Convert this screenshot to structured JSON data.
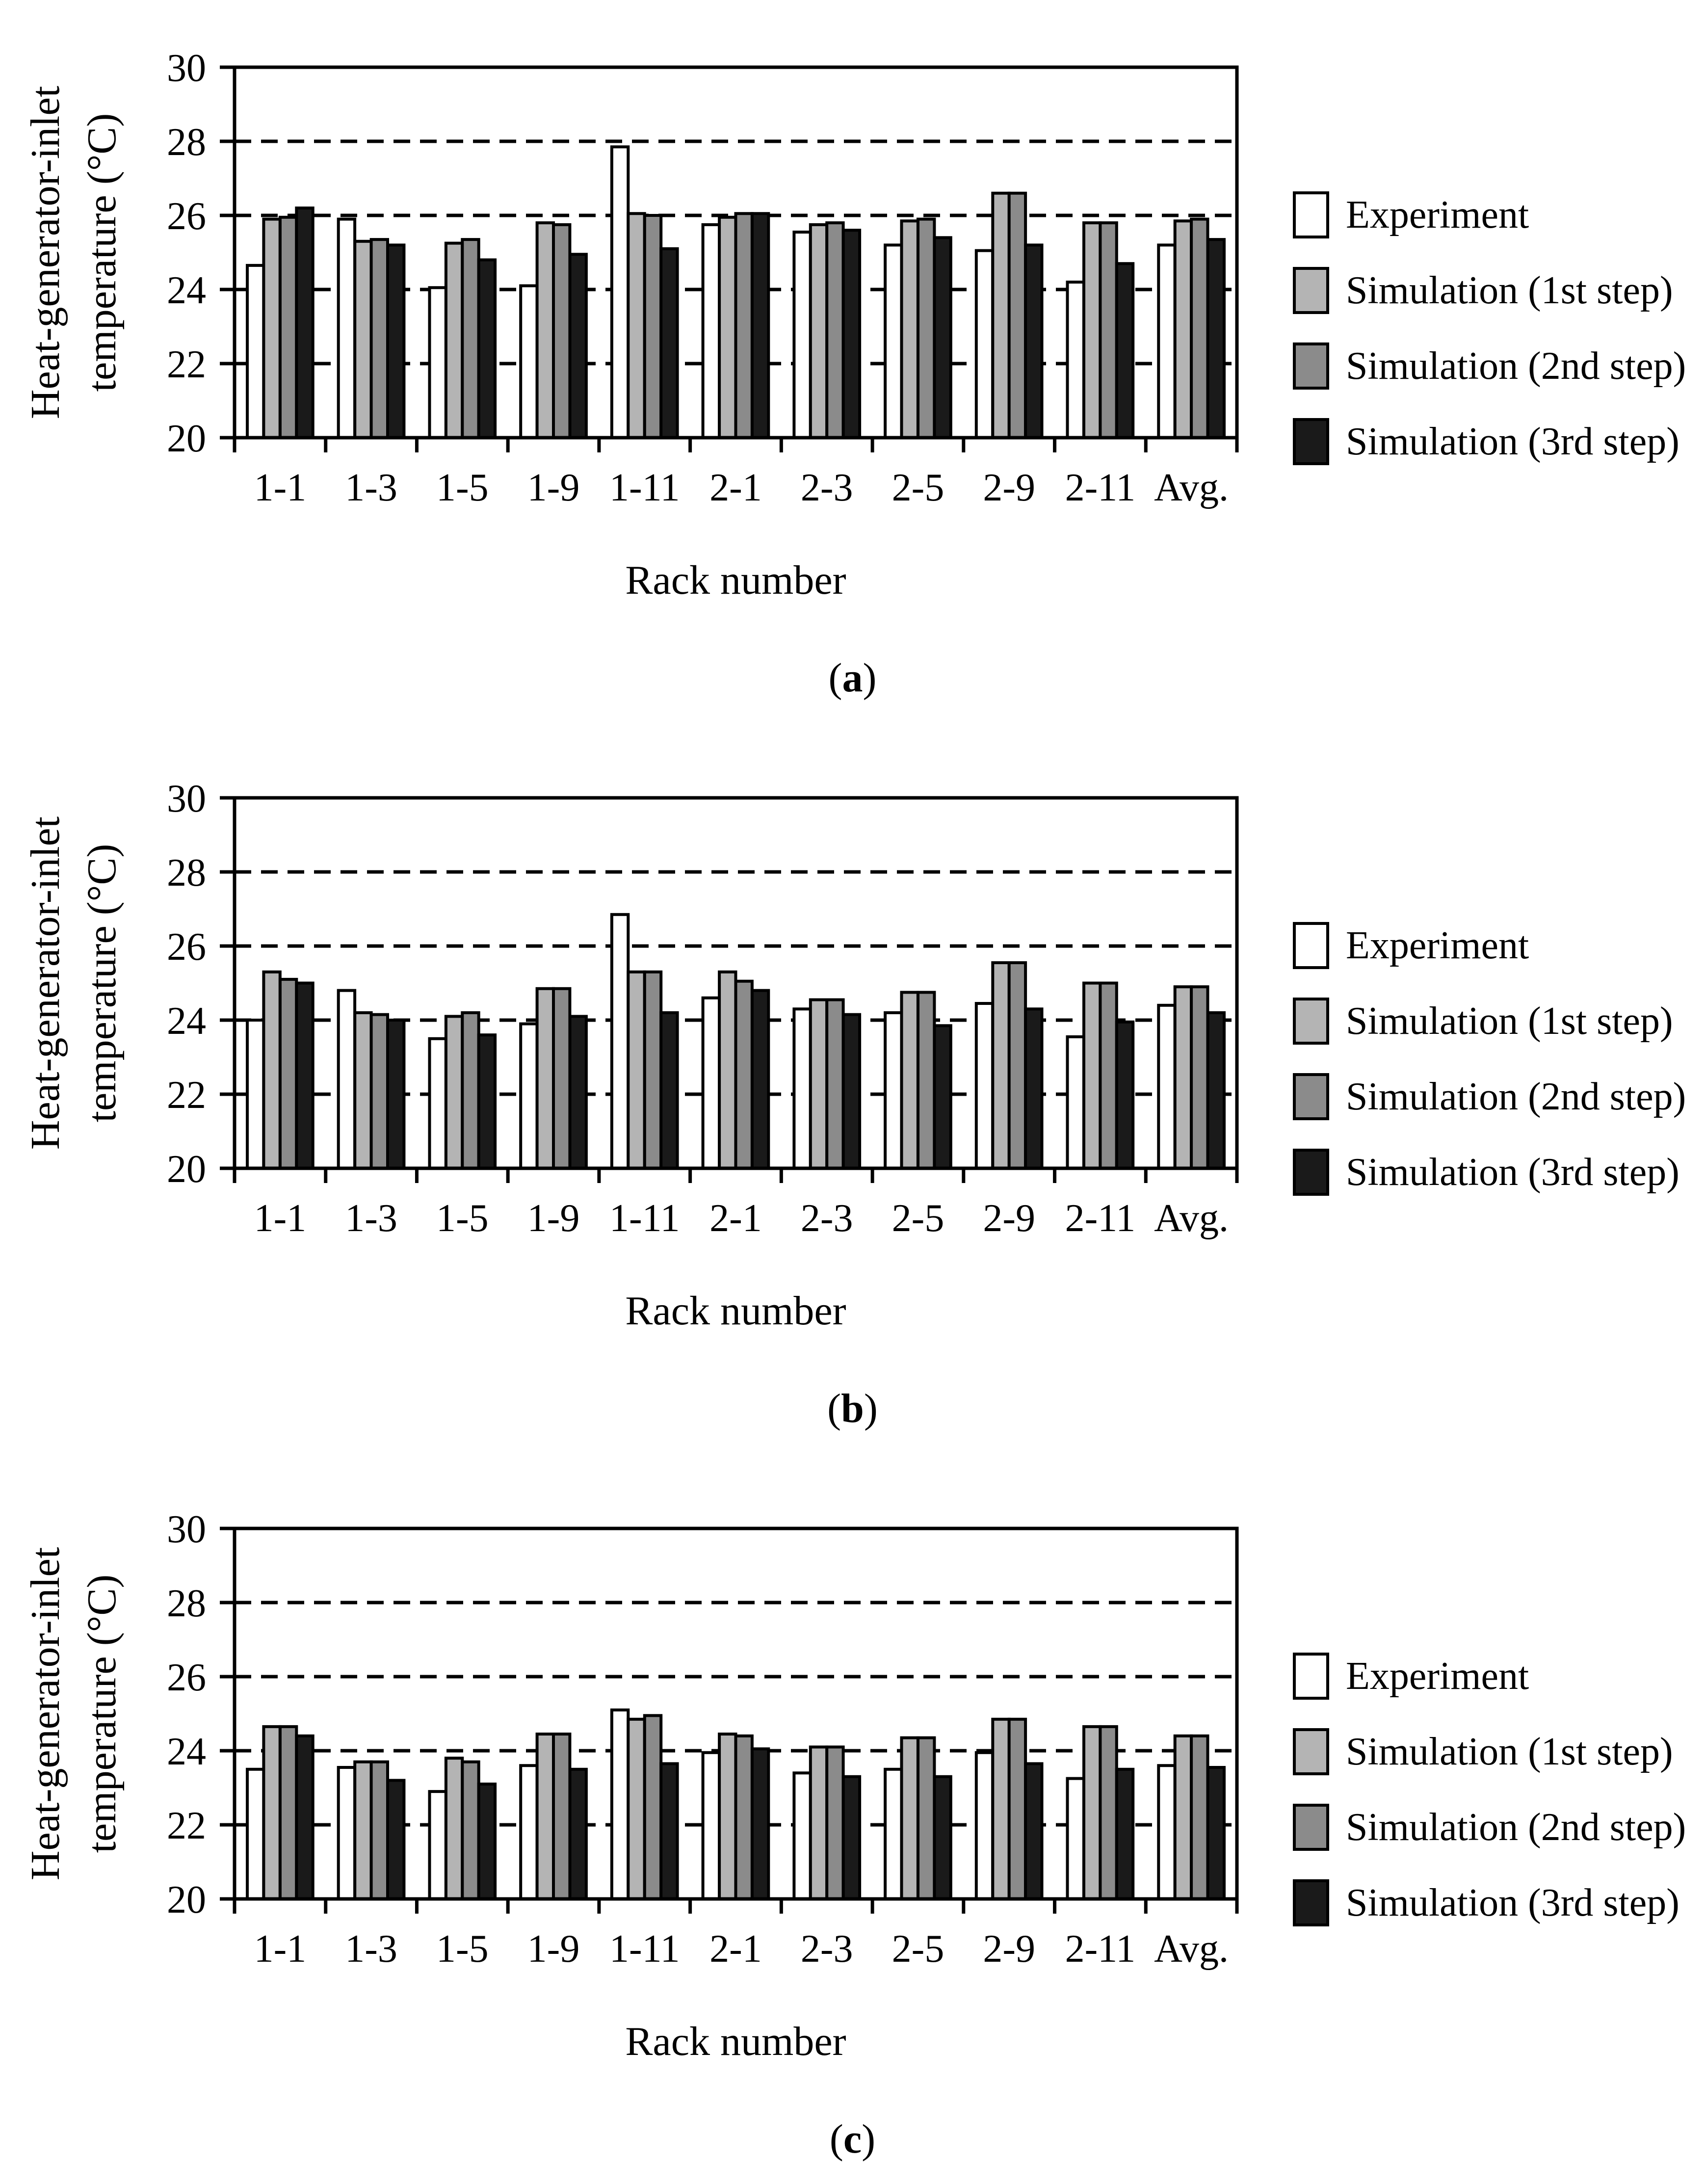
{
  "figure_title": "",
  "shared": {
    "ylabel_line1": "Heat-generator-inlet",
    "ylabel_line2": "temperature (°C)",
    "xlabel": "Rack number",
    "background_color": "#ffffff",
    "axis_color": "#000000"
  },
  "chart_data": [
    {
      "id": "a",
      "type": "bar",
      "caption_prefix": "(",
      "caption_letter": "a",
      "caption_suffix": ")",
      "xlabel": "Rack number",
      "ylabel_lines": [
        "Heat-generator-inlet",
        "temperature (°C)"
      ],
      "ylim": [
        20,
        30
      ],
      "yticks": [
        20,
        22,
        24,
        26,
        28,
        30
      ],
      "gridlines": [
        22,
        24,
        26,
        28
      ],
      "grid_style": "dashed",
      "legend_position": "right",
      "categories": [
        "1-1",
        "1-3",
        "1-5",
        "1-9",
        "1-11",
        "2-1",
        "2-3",
        "2-5",
        "2-9",
        "2-11",
        "Avg."
      ],
      "series": [
        {
          "name": "Experiment",
          "color": "#ffffff",
          "values": [
            24.65,
            25.9,
            24.05,
            24.1,
            27.85,
            25.75,
            25.55,
            25.2,
            25.05,
            24.2,
            25.2
          ]
        },
        {
          "name": "Simulation (1st step)",
          "color": "#b4b4b4",
          "values": [
            25.9,
            25.3,
            25.25,
            25.8,
            26.05,
            25.95,
            25.75,
            25.85,
            26.6,
            25.8,
            25.85
          ]
        },
        {
          "name": "Simulation (2nd step)",
          "color": "#8b8b8b",
          "values": [
            25.95,
            25.35,
            25.35,
            25.75,
            26.0,
            26.05,
            25.8,
            25.9,
            26.6,
            25.8,
            25.9
          ]
        },
        {
          "name": "Simulation (3rd step)",
          "color": "#1a1a1a",
          "values": [
            26.2,
            25.2,
            24.8,
            24.95,
            25.1,
            26.05,
            25.6,
            25.4,
            25.2,
            24.7,
            25.35
          ]
        }
      ]
    },
    {
      "id": "b",
      "type": "bar",
      "caption_prefix": "(",
      "caption_letter": "b",
      "caption_suffix": ")",
      "xlabel": "Rack number",
      "ylabel_lines": [
        "Heat-generator-inlet",
        "temperature (°C)"
      ],
      "ylim": [
        20,
        30
      ],
      "yticks": [
        20,
        22,
        24,
        26,
        28,
        30
      ],
      "gridlines": [
        22,
        24,
        26,
        28
      ],
      "grid_style": "dashed",
      "legend_position": "right",
      "categories": [
        "1-1",
        "1-3",
        "1-5",
        "1-9",
        "1-11",
        "2-1",
        "2-3",
        "2-5",
        "2-9",
        "2-11",
        "Avg."
      ],
      "series": [
        {
          "name": "Experiment",
          "color": "#ffffff",
          "values": [
            24.0,
            24.8,
            23.5,
            23.9,
            26.85,
            24.6,
            24.3,
            24.2,
            24.45,
            23.55,
            24.4
          ]
        },
        {
          "name": "Simulation (1st step)",
          "color": "#b4b4b4",
          "values": [
            25.3,
            24.2,
            24.1,
            24.85,
            25.3,
            25.3,
            24.55,
            24.75,
            25.55,
            25.0,
            24.9
          ]
        },
        {
          "name": "Simulation (2nd step)",
          "color": "#8b8b8b",
          "values": [
            25.1,
            24.15,
            24.2,
            24.85,
            25.3,
            25.05,
            24.55,
            24.75,
            25.55,
            25.0,
            24.9
          ]
        },
        {
          "name": "Simulation (3rd step)",
          "color": "#1a1a1a",
          "values": [
            25.0,
            24.0,
            23.6,
            24.1,
            24.2,
            24.8,
            24.15,
            23.85,
            24.3,
            23.95,
            24.2
          ]
        }
      ]
    },
    {
      "id": "c",
      "type": "bar",
      "caption_prefix": "(",
      "caption_letter": "c",
      "caption_suffix": ")",
      "xlabel": "Rack number",
      "ylabel_lines": [
        "Heat-generator-inlet",
        "temperature (°C)"
      ],
      "ylim": [
        20,
        30
      ],
      "yticks": [
        20,
        22,
        24,
        26,
        28,
        30
      ],
      "gridlines": [
        22,
        24,
        26,
        28
      ],
      "grid_style": "dashed",
      "legend_position": "right",
      "categories": [
        "1-1",
        "1-3",
        "1-5",
        "1-9",
        "1-11",
        "2-1",
        "2-3",
        "2-5",
        "2-9",
        "2-11",
        "Avg."
      ],
      "series": [
        {
          "name": "Experiment",
          "color": "#ffffff",
          "values": [
            23.5,
            23.55,
            22.9,
            23.6,
            25.1,
            23.95,
            23.4,
            23.5,
            23.95,
            23.25,
            23.6
          ]
        },
        {
          "name": "Simulation (1st step)",
          "color": "#b4b4b4",
          "values": [
            24.65,
            23.7,
            23.8,
            24.45,
            24.85,
            24.45,
            24.1,
            24.35,
            24.85,
            24.65,
            24.4
          ]
        },
        {
          "name": "Simulation (2nd step)",
          "color": "#8b8b8b",
          "values": [
            24.65,
            23.7,
            23.7,
            24.45,
            24.95,
            24.4,
            24.1,
            24.35,
            24.85,
            24.65,
            24.4
          ]
        },
        {
          "name": "Simulation (3rd step)",
          "color": "#1a1a1a",
          "values": [
            24.4,
            23.2,
            23.1,
            23.5,
            23.65,
            24.05,
            23.3,
            23.3,
            23.65,
            23.5,
            23.55
          ]
        }
      ]
    }
  ]
}
